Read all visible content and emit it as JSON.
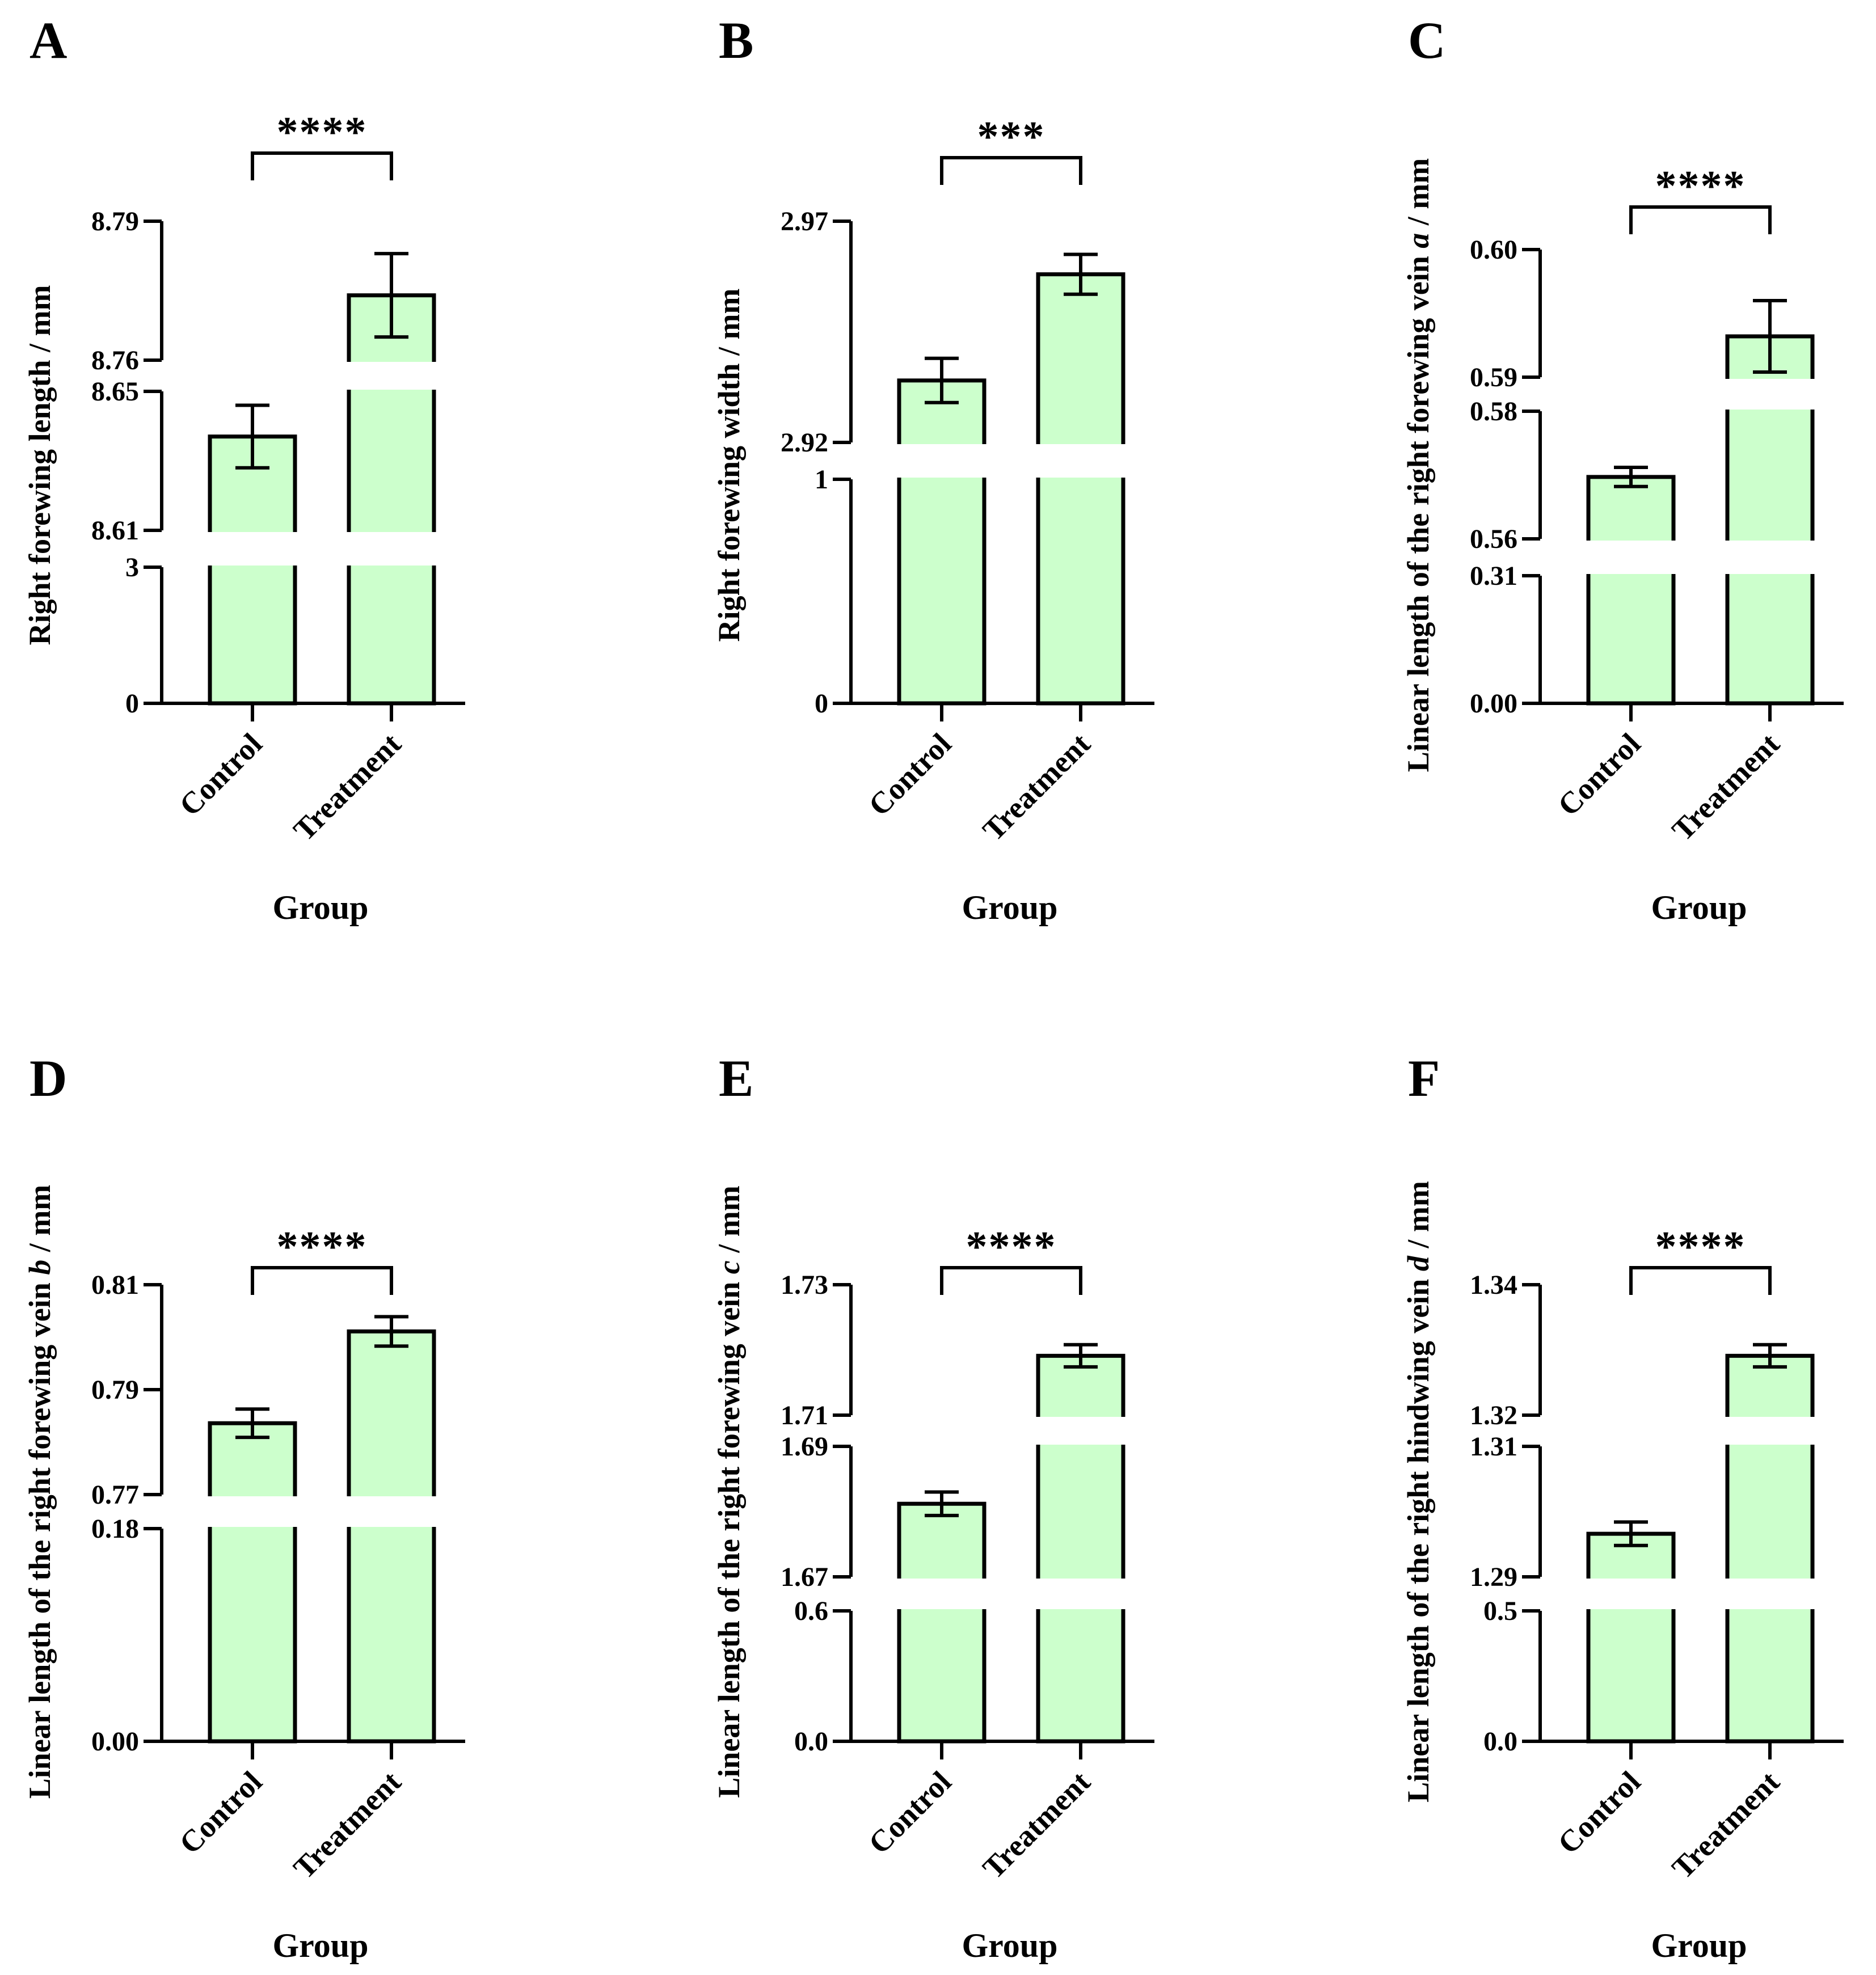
{
  "figure": {
    "background": "#ffffff",
    "bar_color": "#ccffcc",
    "line_color": "#000000"
  },
  "chart_data": [
    {
      "panel": "A",
      "type": "bar",
      "xlabel": "Group",
      "ylabel": "Right forewing length  / mm",
      "categories": [
        "Control",
        "Treatment"
      ],
      "values": [
        8.637,
        8.774
      ],
      "errors": [
        0.009,
        0.009
      ],
      "significance": "****",
      "segments": [
        {
          "range": [
            0,
            3
          ],
          "ticks": [
            {
              "v": 0,
              "label": "0"
            },
            {
              "v": 3,
              "label": "3"
            }
          ]
        },
        {
          "range": [
            8.61,
            8.65
          ],
          "ticks": [
            {
              "v": 8.61,
              "label": "8.61"
            },
            {
              "v": 8.65,
              "label": "8.65"
            }
          ]
        },
        {
          "range": [
            8.76,
            8.79
          ],
          "ticks": [
            {
              "v": 8.76,
              "label": "8.76"
            },
            {
              "v": 8.79,
              "label": "8.79"
            }
          ]
        }
      ]
    },
    {
      "panel": "B",
      "type": "bar",
      "xlabel": "Group",
      "ylabel": "Right forewing width / mm",
      "categories": [
        "Control",
        "Treatment"
      ],
      "values": [
        2.934,
        2.958
      ],
      "errors": [
        0.005,
        0.0045
      ],
      "significance": "***",
      "segments": [
        {
          "range": [
            0,
            1
          ],
          "ticks": [
            {
              "v": 0,
              "label": "0"
            },
            {
              "v": 1,
              "label": "1"
            }
          ]
        },
        {
          "range": [
            2.92,
            2.97
          ],
          "ticks": [
            {
              "v": 2.92,
              "label": "2.92"
            },
            {
              "v": 2.97,
              "label": "2.97"
            }
          ]
        }
      ]
    },
    {
      "panel": "C",
      "type": "bar",
      "xlabel": "Group",
      "ylabel": "Linear length of the right forewing vein a / mm",
      "ylabel_parts": [
        {
          "t": "Linear length of the right forewing vein "
        },
        {
          "t": "a",
          "italic": true
        },
        {
          "t": " / mm"
        }
      ],
      "categories": [
        "Control",
        "Treatment"
      ],
      "values": [
        0.5697,
        0.5932
      ],
      "errors": [
        0.0015,
        0.0028
      ],
      "significance": "****",
      "segments": [
        {
          "range": [
            0,
            0.31
          ],
          "ticks": [
            {
              "v": 0,
              "label": "0.00"
            },
            {
              "v": 0.31,
              "label": "0.31"
            }
          ]
        },
        {
          "range": [
            0.56,
            0.58
          ],
          "ticks": [
            {
              "v": 0.56,
              "label": "0.56"
            },
            {
              "v": 0.58,
              "label": "0.58"
            }
          ]
        },
        {
          "range": [
            0.59,
            0.6
          ],
          "ticks": [
            {
              "v": 0.59,
              "label": "0.59"
            },
            {
              "v": 0.6,
              "label": "0.60"
            }
          ]
        }
      ]
    },
    {
      "panel": "D",
      "type": "bar",
      "xlabel": "Group",
      "ylabel": "Linear length of the right forewing vein b / mm",
      "ylabel_parts": [
        {
          "t": "Linear length of the right forewing vein "
        },
        {
          "t": "b",
          "italic": true
        },
        {
          "t": " / mm"
        }
      ],
      "categories": [
        "Control",
        "Treatment"
      ],
      "values": [
        0.7836,
        0.8011
      ],
      "errors": [
        0.0027,
        0.0028
      ],
      "significance": "****",
      "segments": [
        {
          "range": [
            0,
            0.18
          ],
          "ticks": [
            {
              "v": 0,
              "label": "0.00"
            },
            {
              "v": 0.18,
              "label": "0.18"
            }
          ]
        },
        {
          "range": [
            0.77,
            0.81
          ],
          "ticks": [
            {
              "v": 0.77,
              "label": "0.77"
            },
            {
              "v": 0.79,
              "label": "0.79"
            },
            {
              "v": 0.81,
              "label": "0.81"
            }
          ]
        }
      ]
    },
    {
      "panel": "E",
      "type": "bar",
      "xlabel": "Group",
      "ylabel": "Linear length of the right forewing vein c / mm",
      "ylabel_parts": [
        {
          "t": "Linear length of the right forewing vein "
        },
        {
          "t": "c",
          "italic": true
        },
        {
          "t": " / mm"
        }
      ],
      "categories": [
        "Control",
        "Treatment"
      ],
      "values": [
        1.6812,
        1.7191
      ],
      "errors": [
        0.0018,
        0.0017
      ],
      "significance": "****",
      "segments": [
        {
          "range": [
            0,
            0.6
          ],
          "ticks": [
            {
              "v": 0,
              "label": "0.0"
            },
            {
              "v": 0.6,
              "label": "0.6"
            }
          ]
        },
        {
          "range": [
            1.67,
            1.69
          ],
          "ticks": [
            {
              "v": 1.67,
              "label": "1.67"
            },
            {
              "v": 1.69,
              "label": "1.69"
            }
          ]
        },
        {
          "range": [
            1.71,
            1.73
          ],
          "ticks": [
            {
              "v": 1.71,
              "label": "1.71"
            },
            {
              "v": 1.73,
              "label": "1.73"
            }
          ]
        }
      ]
    },
    {
      "panel": "F",
      "type": "bar",
      "xlabel": "Group",
      "ylabel": "Linear length of the right hindwing vein d / mm",
      "ylabel_parts": [
        {
          "t": "Linear length of the right hindwing vein "
        },
        {
          "t": "d",
          "italic": true
        },
        {
          "t": " / mm"
        }
      ],
      "categories": [
        "Control",
        "Treatment"
      ],
      "values": [
        1.2966,
        1.3291
      ],
      "errors": [
        0.0018,
        0.0017
      ],
      "significance": "****",
      "segments": [
        {
          "range": [
            0,
            0.5
          ],
          "ticks": [
            {
              "v": 0,
              "label": "0.0"
            },
            {
              "v": 0.5,
              "label": "0.5"
            }
          ]
        },
        {
          "range": [
            1.29,
            1.31
          ],
          "ticks": [
            {
              "v": 1.29,
              "label": "1.29"
            },
            {
              "v": 1.31,
              "label": "1.31"
            }
          ]
        },
        {
          "range": [
            1.32,
            1.34
          ],
          "ticks": [
            {
              "v": 1.32,
              "label": "1.32"
            },
            {
              "v": 1.34,
              "label": "1.34"
            }
          ]
        }
      ]
    }
  ]
}
